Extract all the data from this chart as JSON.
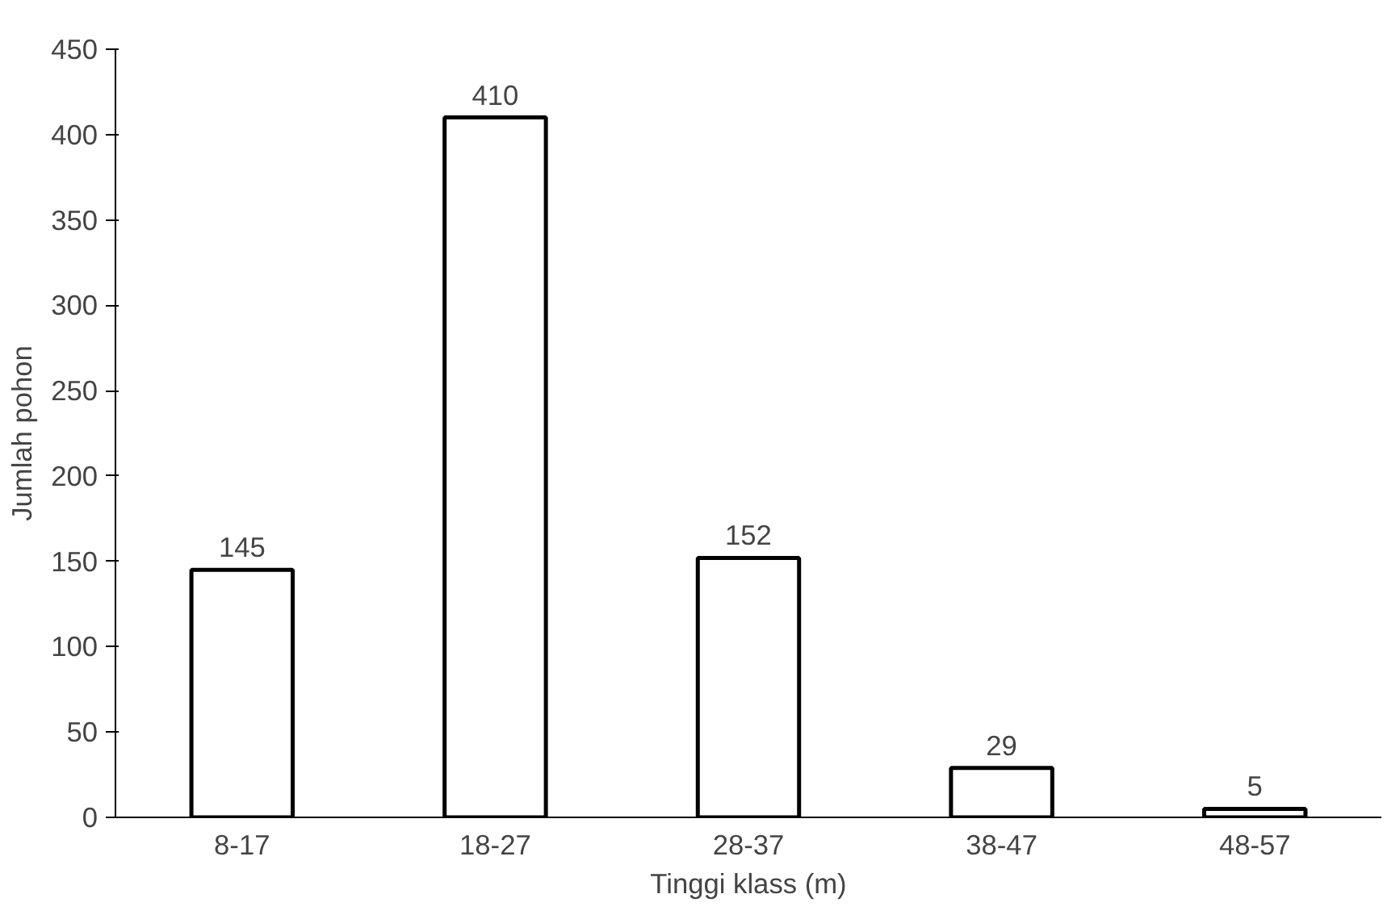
{
  "chart_data": {
    "type": "bar",
    "xlabel": "Tinggi klass (m)",
    "ylabel": "Jumlah pohon",
    "categories": [
      "8-17",
      "18-27",
      "28-37",
      "38-47",
      "48-57"
    ],
    "values": [
      145,
      410,
      152,
      29,
      5
    ],
    "color": "#ffffff",
    "ylim": [
      0,
      450
    ],
    "yticks": [
      0,
      50,
      100,
      150,
      200,
      250,
      300,
      350,
      400,
      450
    ],
    "grid": false,
    "data_labels": true
  }
}
